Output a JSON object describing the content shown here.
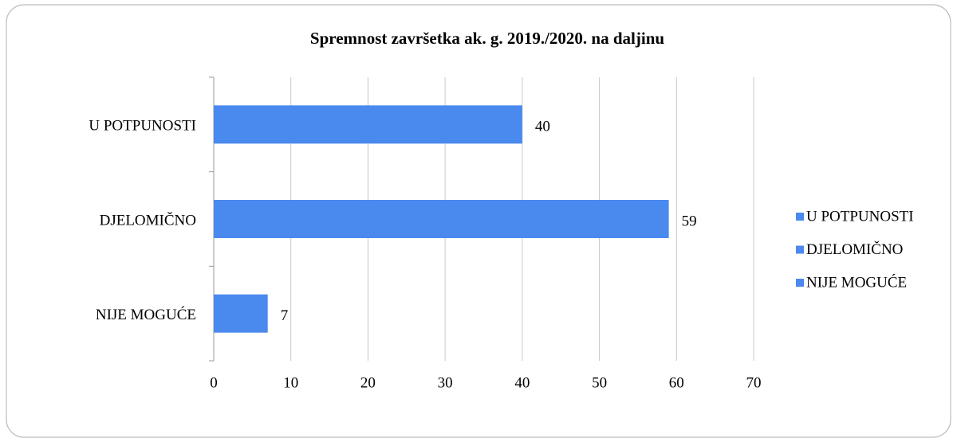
{
  "chart_data": {
    "type": "bar",
    "orientation": "horizontal",
    "title": "Spremnost završetka ak. g. 2019./2020. na daljinu",
    "categories": [
      "U POTPUNOSTI",
      "DJELOMIČNO",
      "NIJE MOGUĆE"
    ],
    "values": [
      40,
      59,
      7
    ],
    "color": "#4a89ee",
    "xlim": [
      0,
      70
    ],
    "xticks": [
      0,
      10,
      20,
      30,
      40,
      50,
      60,
      70
    ],
    "grid": true,
    "legend": "right"
  }
}
